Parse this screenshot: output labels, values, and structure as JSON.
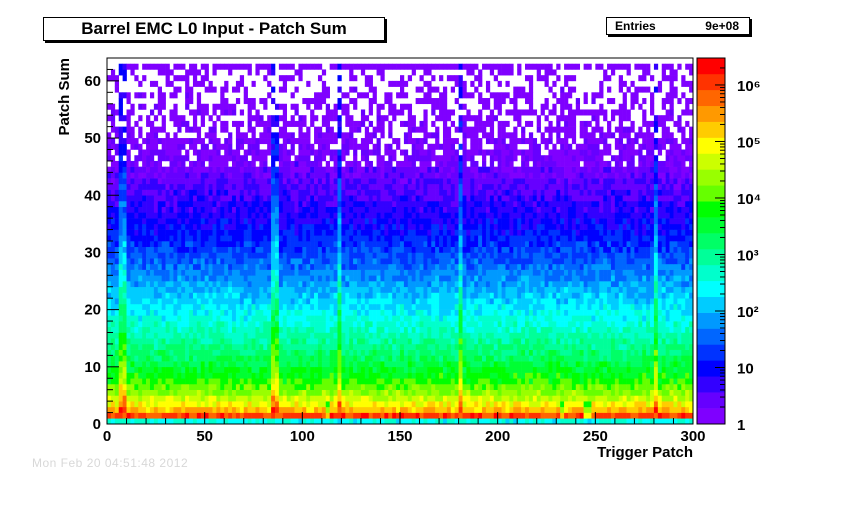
{
  "title": "Barrel EMC L0 Input - Patch Sum",
  "stats": {
    "label": "Entries",
    "value": "9e+08"
  },
  "footer_text": "Mon Feb 20 04:51:48 2012",
  "chart_data": {
    "type": "heatmap",
    "title": "Barrel EMC L0 Input - Patch Sum",
    "xlabel": "Trigger Patch",
    "ylabel": "Patch Sum",
    "xlim": [
      0,
      300
    ],
    "ylim": [
      0,
      64
    ],
    "x_ticks": [
      0,
      50,
      100,
      150,
      200,
      250,
      300
    ],
    "y_ticks": [
      0,
      10,
      20,
      30,
      40,
      50,
      60
    ],
    "color_scale": "log",
    "z_range": [
      1,
      3000000
    ],
    "colorbar_ticks": [
      {
        "value": 1,
        "label": "1"
      },
      {
        "value": 10,
        "label": "10"
      },
      {
        "value": 100,
        "label": "10²"
      },
      {
        "value": 1000,
        "label": "10³"
      },
      {
        "value": 10000,
        "label": "10⁴"
      },
      {
        "value": 100000,
        "label": "10⁵"
      },
      {
        "value": 1000000,
        "label": "10⁶"
      }
    ],
    "entries": 900000000,
    "description_profile": {
      "peak_row": {
        "patch_sum": 1,
        "counts": 1000000
      },
      "row_0_counts": 300,
      "counts_per_patch_sum": [
        {
          "patch_sum": 0,
          "counts": 300
        },
        {
          "patch_sum": 1,
          "counts": 1000000
        },
        {
          "patch_sum": 2,
          "counts": 200000
        },
        {
          "patch_sum": 3,
          "counts": 80000
        },
        {
          "patch_sum": 5,
          "counts": 20000
        },
        {
          "patch_sum": 8,
          "counts": 5000
        },
        {
          "patch_sum": 12,
          "counts": 1500
        },
        {
          "patch_sum": 16,
          "counts": 500
        },
        {
          "patch_sum": 20,
          "counts": 200
        },
        {
          "patch_sum": 25,
          "counts": 60
        },
        {
          "patch_sum": 30,
          "counts": 20
        },
        {
          "patch_sum": 35,
          "counts": 8
        },
        {
          "patch_sum": 40,
          "counts": 4
        },
        {
          "patch_sum": 45,
          "counts": 2
        },
        {
          "patch_sum": 50,
          "counts": 1.3
        },
        {
          "patch_sum": 55,
          "counts": 1.1
        },
        {
          "patch_sum": 62,
          "counts": 1
        }
      ],
      "bright_columns": [
        7,
        85,
        118,
        180,
        280
      ],
      "dim_columns": [
        112,
        232,
        245
      ]
    },
    "palette": [
      "#7f00ff",
      "#6600ff",
      "#3300ff",
      "#0000ff",
      "#0033ff",
      "#0066ff",
      "#0099ff",
      "#00ccff",
      "#00ffff",
      "#00ffcc",
      "#00ff99",
      "#00ff66",
      "#00ff33",
      "#00ff00",
      "#66ff00",
      "#99ff00",
      "#ccff00",
      "#ffff00",
      "#ffcc00",
      "#ff9900",
      "#ff6600",
      "#ff3300",
      "#ff0000"
    ]
  }
}
